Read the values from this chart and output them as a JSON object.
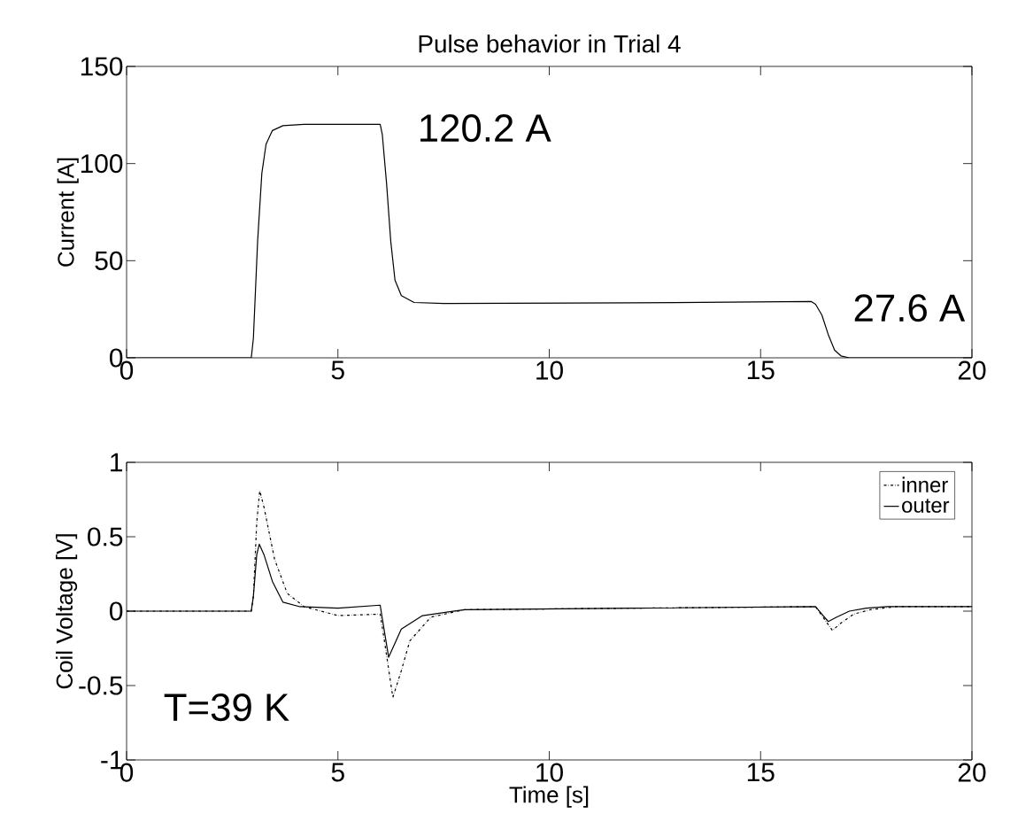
{
  "chart_data": [
    {
      "type": "line",
      "title": "Pulse behavior in Trial 4",
      "ylabel": "Current [A]",
      "xlim": [
        0,
        20
      ],
      "xticks": [
        0,
        5,
        10,
        15,
        20
      ],
      "ylim": [
        0,
        150
      ],
      "yticks": [
        0,
        50,
        100,
        150
      ],
      "grid": false,
      "series": [
        {
          "color": "#000000",
          "line_style": "solid",
          "x": [
            0,
            2.95,
            3.0,
            3.1,
            3.2,
            3.3,
            3.45,
            3.7,
            4.2,
            6.0,
            6.05,
            6.15,
            6.25,
            6.35,
            6.5,
            6.8,
            7.5,
            12,
            16.2,
            16.3,
            16.45,
            16.6,
            16.75,
            16.9,
            17.1,
            20
          ],
          "values": [
            0,
            0,
            10,
            60,
            95,
            110,
            117,
            119.5,
            120.2,
            120.2,
            115,
            90,
            60,
            40,
            32,
            28.5,
            28,
            28.3,
            29,
            27.6,
            22,
            12,
            4,
            1,
            0,
            0
          ]
        }
      ],
      "annotations": [
        {
          "text": "120.2 A",
          "x": 6,
          "y": 120.2
        },
        {
          "text": "27.6 A",
          "x": 16.3,
          "y": 27.6
        }
      ]
    },
    {
      "type": "line",
      "xlabel": "Time [s]",
      "ylabel": "Coil Voltage [V]",
      "xlim": [
        0,
        20
      ],
      "xticks": [
        0,
        5,
        10,
        15,
        20
      ],
      "ylim": [
        -1,
        1
      ],
      "yticks": [
        -1,
        -0.5,
        0,
        0.5,
        1
      ],
      "grid": false,
      "legend": "top right",
      "series": [
        {
          "name": "inner",
          "color": "#000000",
          "line_style": "dashdot",
          "x": [
            0,
            2.95,
            3.0,
            3.08,
            3.15,
            3.25,
            3.5,
            3.8,
            4.2,
            5,
            6.0,
            6.1,
            6.3,
            6.5,
            6.7,
            7.2,
            8,
            12,
            16.3,
            16.5,
            16.7,
            16.9,
            17.2,
            17.6,
            18.2,
            20
          ],
          "values": [
            0,
            0,
            0.1,
            0.6,
            0.81,
            0.7,
            0.35,
            0.12,
            0.03,
            -0.03,
            -0.02,
            -0.2,
            -0.58,
            -0.4,
            -0.2,
            -0.04,
            0.01,
            0.02,
            0.03,
            -0.05,
            -0.13,
            -0.08,
            -0.02,
            0.01,
            0.03,
            0.03
          ]
        },
        {
          "name": "outer",
          "color": "#000000",
          "line_style": "solid",
          "x": [
            0,
            2.95,
            3.0,
            3.08,
            3.14,
            3.25,
            3.45,
            3.7,
            4.1,
            5,
            6.0,
            6.05,
            6.2,
            6.5,
            7,
            8,
            12,
            16.3,
            16.45,
            16.6,
            16.8,
            17.1,
            17.5,
            18,
            20
          ],
          "values": [
            0,
            0,
            0.1,
            0.38,
            0.45,
            0.38,
            0.2,
            0.06,
            0.03,
            0.02,
            0.04,
            -0.05,
            -0.31,
            -0.12,
            -0.03,
            0.01,
            0.02,
            0.03,
            -0.02,
            -0.07,
            -0.04,
            0.0,
            0.02,
            0.03,
            0.03
          ]
        }
      ],
      "annotations": [
        "T=39 K"
      ]
    }
  ]
}
